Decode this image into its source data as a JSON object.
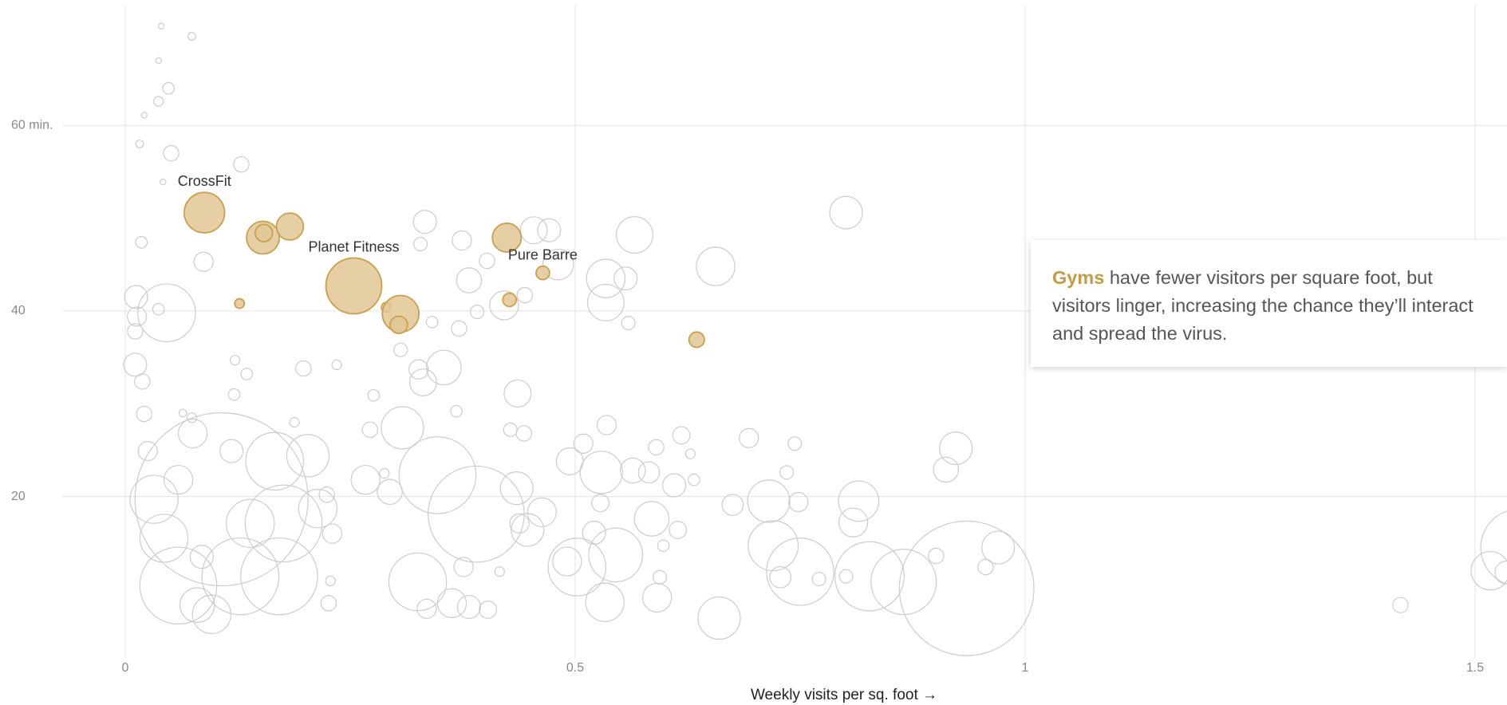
{
  "chart_data": {
    "type": "scatter",
    "xlabel": "Weekly visits per sq. foot →",
    "xlim": [
      0,
      1.5
    ],
    "ylim": [
      2.6,
      73
    ],
    "xticks": [
      0,
      0.5,
      1,
      1.5
    ],
    "yticks": [
      {
        "value": 60,
        "label": "60 min."
      },
      40,
      20
    ],
    "grid": true,
    "annotation": {
      "highlight": "Gyms",
      "text": " have fewer visitors per square foot, but visitors linger, increasing the chance they’ll interact and spread the virus."
    },
    "series": [
      {
        "color": "#cccccc",
        "fill": "none",
        "x": [
          0.04,
          0.074,
          0.037,
          0.048,
          0.037,
          0.021,
          0.016,
          0.051,
          0.129,
          0.042,
          0.018,
          0.087,
          0.046,
          0.012,
          0.013,
          0.011,
          0.011,
          0.019,
          0.037,
          0.122,
          0.135,
          0.121,
          0.074,
          0.075,
          0.021,
          0.025,
          0.107,
          0.032,
          0.059,
          0.059,
          0.043,
          0.139,
          0.128,
          0.171,
          0.176,
          0.203,
          0.166,
          0.08,
          0.096,
          0.085,
          0.118,
          0.064,
          0.198,
          0.235,
          0.188,
          0.214,
          0.23,
          0.224,
          0.226,
          0.228,
          0.276,
          0.272,
          0.267,
          0.294,
          0.288,
          0.308,
          0.306,
          0.326,
          0.331,
          0.354,
          0.341,
          0.333,
          0.328,
          0.371,
          0.374,
          0.382,
          0.368,
          0.347,
          0.39,
          0.325,
          0.335,
          0.363,
          0.382,
          0.403,
          0.376,
          0.416,
          0.391,
          0.402,
          0.421,
          0.436,
          0.428,
          0.443,
          0.435,
          0.438,
          0.447,
          0.463,
          0.454,
          0.471,
          0.444,
          0.481,
          0.494,
          0.509,
          0.502,
          0.491,
          0.534,
          0.534,
          0.556,
          0.566,
          0.559,
          0.535,
          0.529,
          0.528,
          0.521,
          0.545,
          0.533,
          0.564,
          0.582,
          0.585,
          0.59,
          0.598,
          0.61,
          0.618,
          0.614,
          0.591,
          0.594,
          0.656,
          0.66,
          0.628,
          0.632,
          0.675,
          0.693,
          0.715,
          0.72,
          0.728,
          0.75,
          0.748,
          0.744,
          0.735,
          0.771,
          0.801,
          0.815,
          0.809,
          0.801,
          0.827,
          0.865,
          0.901,
          0.923,
          0.912,
          0.935,
          0.956,
          0.97,
          1.417,
          1.517,
          1.549,
          1.535
        ],
        "values": [
          70.7,
          69.6,
          67.0,
          64.0,
          62.6,
          61.1,
          58.0,
          57.0,
          55.8,
          53.9,
          47.4,
          45.3,
          39.8,
          41.5,
          39.4,
          37.8,
          34.2,
          32.4,
          40.2,
          34.7,
          33.2,
          31.0,
          28.5,
          26.8,
          28.9,
          24.9,
          19.7,
          19.7,
          21.8,
          10.4,
          15.5,
          17.1,
          11.4,
          11.4,
          17.1,
          24.4,
          23.8,
          8.3,
          7.3,
          13.5,
          24.9,
          29.0,
          33.8,
          34.2,
          28.0,
          18.7,
          16.0,
          20.2,
          8.5,
          10.9,
          30.9,
          27.2,
          21.8,
          20.5,
          22.5,
          27.4,
          35.8,
          33.7,
          32.3,
          33.9,
          38.8,
          49.6,
          47.2,
          38.1,
          47.6,
          43.3,
          29.2,
          22.3,
          18.1,
          10.8,
          7.9,
          8.5,
          8.1,
          7.8,
          12.4,
          11.9,
          39.9,
          45.4,
          40.6,
          31.1,
          27.2,
          26.8,
          20.9,
          17.1,
          16.4,
          18.3,
          48.7,
          48.7,
          41.7,
          45.0,
          23.8,
          25.7,
          12.4,
          13.0,
          43.5,
          40.9,
          43.5,
          48.2,
          38.7,
          27.7,
          22.6,
          19.3,
          16.1,
          13.7,
          8.6,
          22.8,
          22.6,
          17.6,
          25.3,
          14.7,
          21.2,
          26.6,
          16.4,
          9.1,
          11.3,
          44.8,
          6.9,
          24.6,
          21.8,
          19.1,
          26.3,
          19.5,
          14.7,
          11.3,
          11.9,
          19.4,
          25.7,
          22.6,
          11.1,
          50.6,
          19.5,
          17.2,
          11.4,
          11.4,
          10.8,
          13.6,
          25.2,
          22.9,
          10.1,
          12.4,
          14.5,
          8.3,
          12.0,
          14.5,
          11.8
        ],
        "sizes": [
          3,
          4,
          3,
          6,
          5,
          3,
          4,
          8,
          8,
          3,
          6,
          10,
          30,
          12,
          10,
          8,
          12,
          8,
          6,
          5,
          6,
          6,
          5,
          15,
          8,
          10,
          90,
          25,
          15,
          40,
          25,
          25,
          40,
          40,
          40,
          22,
          30,
          18,
          20,
          12,
          12,
          4,
          8,
          5,
          5,
          20,
          10,
          8,
          8,
          5,
          6,
          8,
          15,
          13,
          5,
          22,
          7,
          10,
          14,
          18,
          6,
          12,
          7,
          8,
          10,
          13,
          6,
          40,
          50,
          30,
          10,
          15,
          12,
          9,
          10,
          5,
          7,
          8,
          15,
          14,
          7,
          8,
          17,
          10,
          17,
          15,
          14,
          12,
          8,
          16,
          14,
          10,
          30,
          15,
          20,
          19,
          12,
          19,
          7,
          10,
          22,
          9,
          12,
          28,
          20,
          13,
          11,
          18,
          8,
          6,
          12,
          9,
          9,
          15,
          7,
          20,
          22,
          5,
          6,
          11,
          10,
          22,
          26,
          11,
          35,
          10,
          7,
          7,
          7,
          17,
          21,
          15,
          7,
          36,
          34,
          8,
          17,
          13,
          70,
          8,
          17,
          8,
          20,
          40,
          12
        ]
      },
      {
        "color": "#c9a04e",
        "fill": "#e2c795",
        "x": [
          0.088,
          0.153,
          0.154,
          0.183,
          0.254,
          0.29,
          0.306,
          0.304,
          0.127,
          0.424,
          0.427,
          0.464,
          0.635
        ],
        "values": [
          50.6,
          47.9,
          48.4,
          49.1,
          42.7,
          40.4,
          39.7,
          38.5,
          40.8,
          47.9,
          41.2,
          44.1,
          36.9
        ],
        "sizes": [
          21,
          17,
          9,
          14,
          29,
          5,
          19,
          9,
          5,
          15,
          7,
          7,
          8
        ],
        "labels": [
          "CrossFit",
          null,
          null,
          null,
          "Planet Fitness",
          null,
          null,
          null,
          null,
          null,
          null,
          "Pure Barre",
          null
        ]
      }
    ]
  }
}
